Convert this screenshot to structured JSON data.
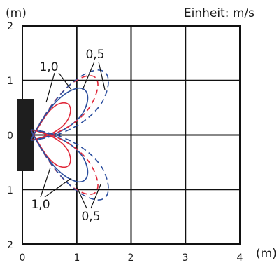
{
  "units": {
    "y_unit": "(m)",
    "x_unit": "(m)",
    "speed_unit": "Einheit: m/s"
  },
  "axis": {
    "y_ticks": [
      "2",
      "1",
      "0",
      "1",
      "2"
    ],
    "x_ticks": [
      "0",
      "1",
      "2",
      "3",
      "4"
    ]
  },
  "annotations": {
    "label_top_1_0": "1,0",
    "label_top_0_5": "0,5",
    "label_bottom_1_0": "1,0",
    "label_bottom_0_5": "0,5"
  },
  "colors": {
    "red": "#e0283a",
    "blue": "#2b4e9e",
    "device": "#1e1e1e",
    "grid": "#111111"
  }
}
